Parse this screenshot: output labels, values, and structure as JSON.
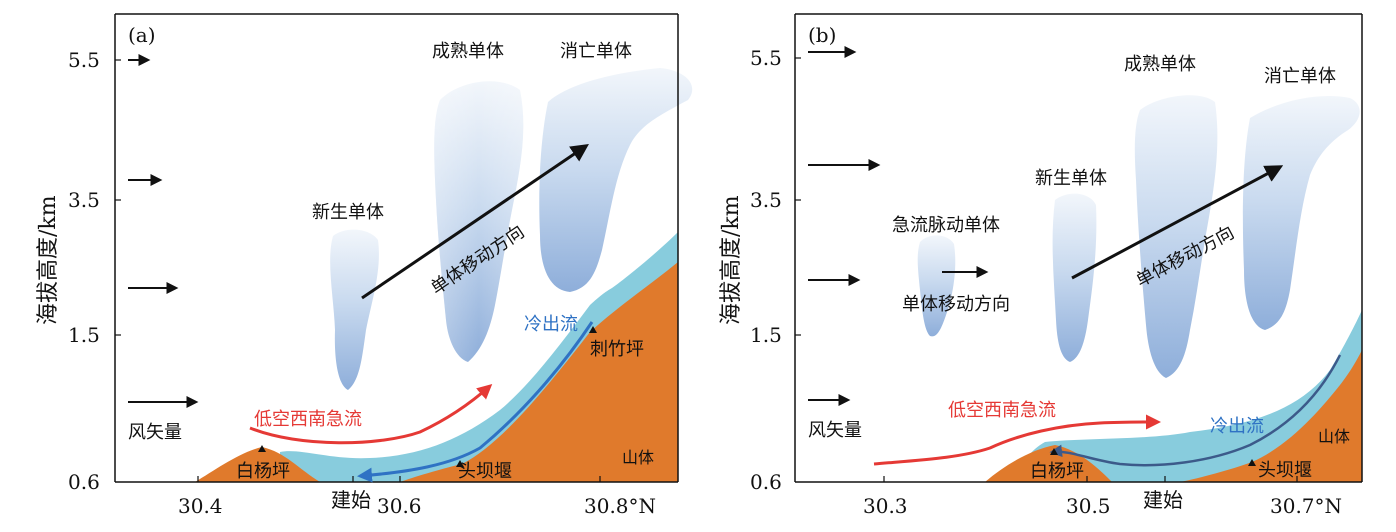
{
  "colors": {
    "terrain": "#E07A2C",
    "outflow_layer": "#88CCDD",
    "outflow_arrow": "#2F72C4",
    "jet": "#E53935",
    "cloud_light": "#E8F0F9",
    "cloud_dark": "#8FB0DA",
    "axis": "#111111"
  },
  "panels": [
    {
      "label": "(a)",
      "y_ticks": [
        "5.5",
        "3.5",
        "1.5",
        "0.6"
      ],
      "x_ticks": [
        "30.4",
        "30.6",
        "30.8°N"
      ],
      "x_station": "建始",
      "y_axis_title": "海拔高度/km",
      "labels": {
        "wind": "风矢量",
        "new_cell": "新生单体",
        "mature_cell": "成熟单体",
        "dying_cell": "消亡单体",
        "move_dir": "单体移动方向",
        "outflow": "冷出流",
        "jet": "低空西南急流",
        "mountain": "山体",
        "peak1": "白杨坪",
        "peak2": "头坝堰",
        "peak3": "刺竹坪"
      }
    },
    {
      "label": "(b)",
      "y_ticks": [
        "5.5",
        "3.5",
        "1.5",
        "0.6"
      ],
      "x_ticks": [
        "30.3",
        "30.5",
        "30.7°N"
      ],
      "x_station": "建始",
      "y_axis_title": "海拔高度/km",
      "labels": {
        "wind": "风矢量",
        "jet_pulse_cell": "急流脉动单体",
        "new_cell": "新生单体",
        "mature_cell": "成熟单体",
        "dying_cell": "消亡单体",
        "move_dir_small": "单体移动方向",
        "move_dir": "单体移动方向",
        "outflow": "冷出流",
        "jet": "低空西南急流",
        "mountain": "山体",
        "peak1": "白杨坪",
        "peak2": "头坝堰"
      }
    }
  ]
}
